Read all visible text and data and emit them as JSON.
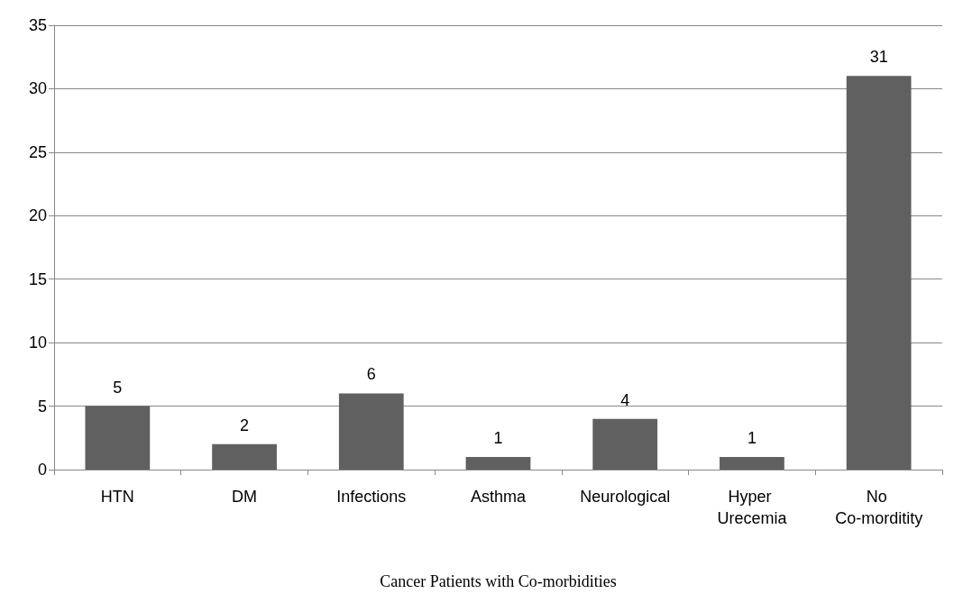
{
  "chart_data": {
    "type": "bar",
    "xlabel": "Cancer Patients with Co-morbidities",
    "categories": [
      "HTN",
      "DM",
      "Infections",
      "Asthma",
      "Neurological",
      "Hyper Urecemia",
      "No Co-morditity"
    ],
    "values": [
      5,
      2,
      6,
      1,
      4,
      1,
      31
    ],
    "color": "#606060",
    "ylim": [
      0,
      35
    ],
    "yticks": [
      0,
      5,
      10,
      15,
      20,
      25,
      30,
      35
    ],
    "grid": "y",
    "data_labels": true
  }
}
